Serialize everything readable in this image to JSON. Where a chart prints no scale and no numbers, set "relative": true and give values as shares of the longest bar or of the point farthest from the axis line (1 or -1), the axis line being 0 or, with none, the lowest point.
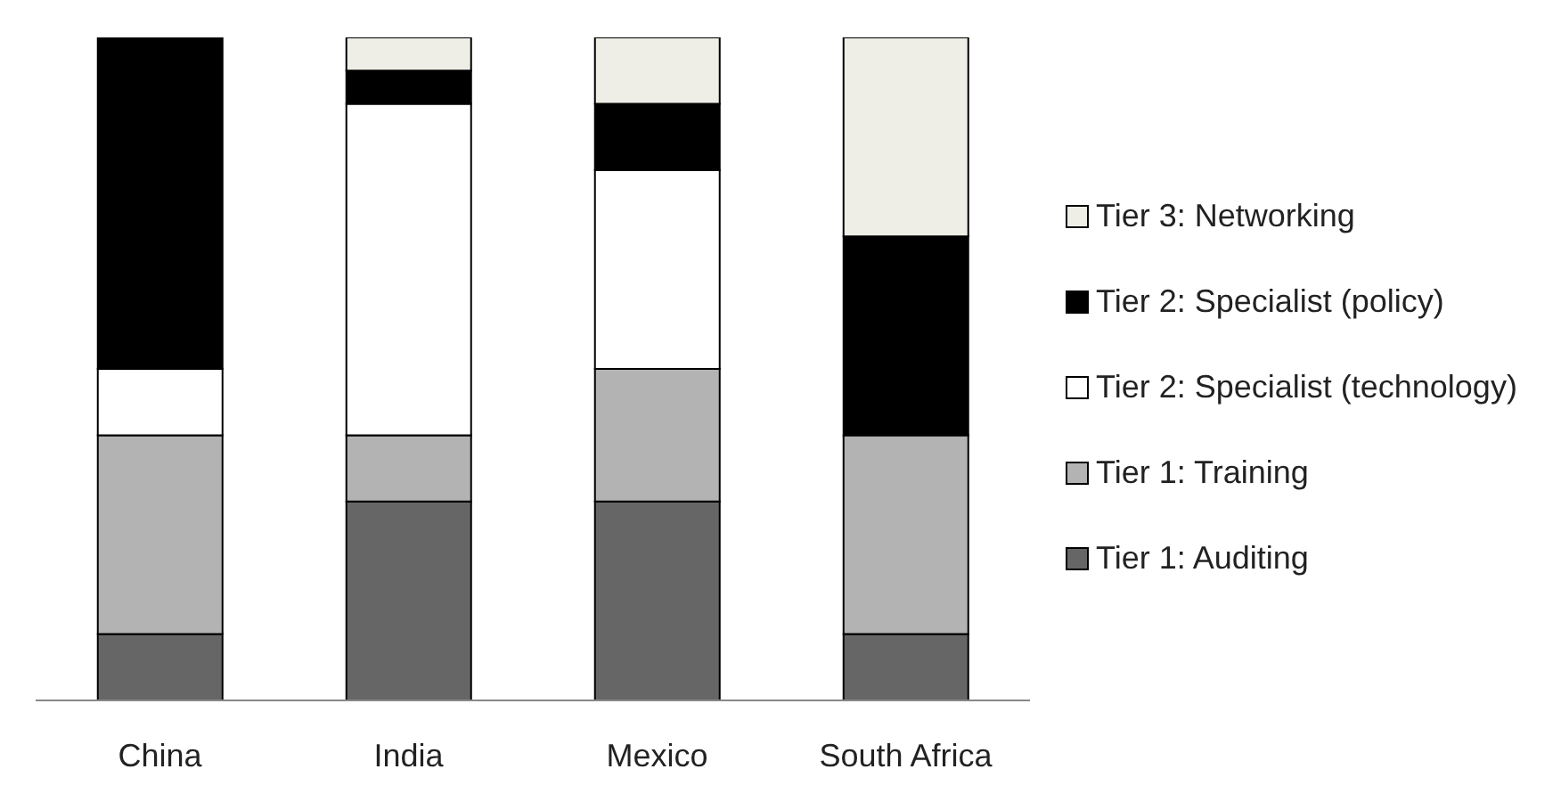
{
  "chart_data": {
    "type": "bar",
    "relative": true,
    "stacked": true,
    "legend": "right",
    "grid": false,
    "categories": [
      "China",
      "India",
      "Mexico",
      "South Africa"
    ],
    "series": [
      {
        "name": "Tier 1: Auditing",
        "color": "#666666",
        "values": [
          0.1,
          0.3,
          0.3,
          0.1
        ]
      },
      {
        "name": "Tier 1: Training",
        "color": "#b3b3b3",
        "values": [
          0.3,
          0.1,
          0.2,
          0.3
        ]
      },
      {
        "name": "Tier 2: Specialist (technology)",
        "color": "#ffffff",
        "values": [
          0.1,
          0.5,
          0.3,
          0
        ]
      },
      {
        "name": "Tier 2: Specialist (policy)",
        "color": "#000000",
        "values": [
          0.5,
          0.05,
          0.1,
          0.3
        ]
      },
      {
        "name": "Tier 3: Networking",
        "color": "#eeeee6",
        "values": [
          0,
          0.05,
          0.1,
          0.3
        ]
      }
    ]
  }
}
